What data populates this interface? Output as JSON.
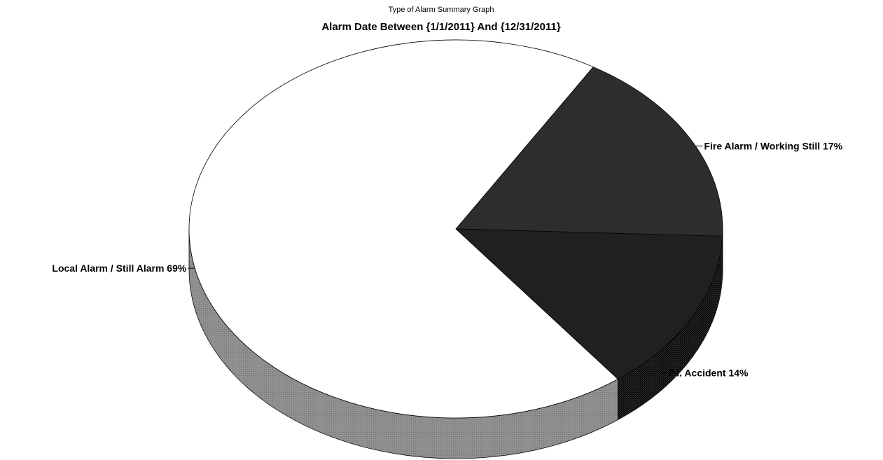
{
  "chart_data": {
    "type": "pie",
    "title": "Type of Alarm Summary Graph",
    "subtitle": "Alarm Date Between {1/1/2011} And {12/31/2011}",
    "slices": [
      {
        "label": "Fire Alarm / Working Still",
        "percent": 17,
        "display": "Fire Alarm / Working Still 17%",
        "color": "#2a2a2a",
        "side_color": "#141414"
      },
      {
        "label": "P.I. Accident",
        "percent": 14,
        "display": "P.I. Accident 14%",
        "color": "#1c1c1c",
        "side_color": "#060606"
      },
      {
        "label": "Local Alarm / Still Alarm",
        "percent": 69,
        "display": "Local Alarm / Still Alarm 69%",
        "color": "#ffffff",
        "side_color": "#8c8c8c"
      }
    ]
  }
}
